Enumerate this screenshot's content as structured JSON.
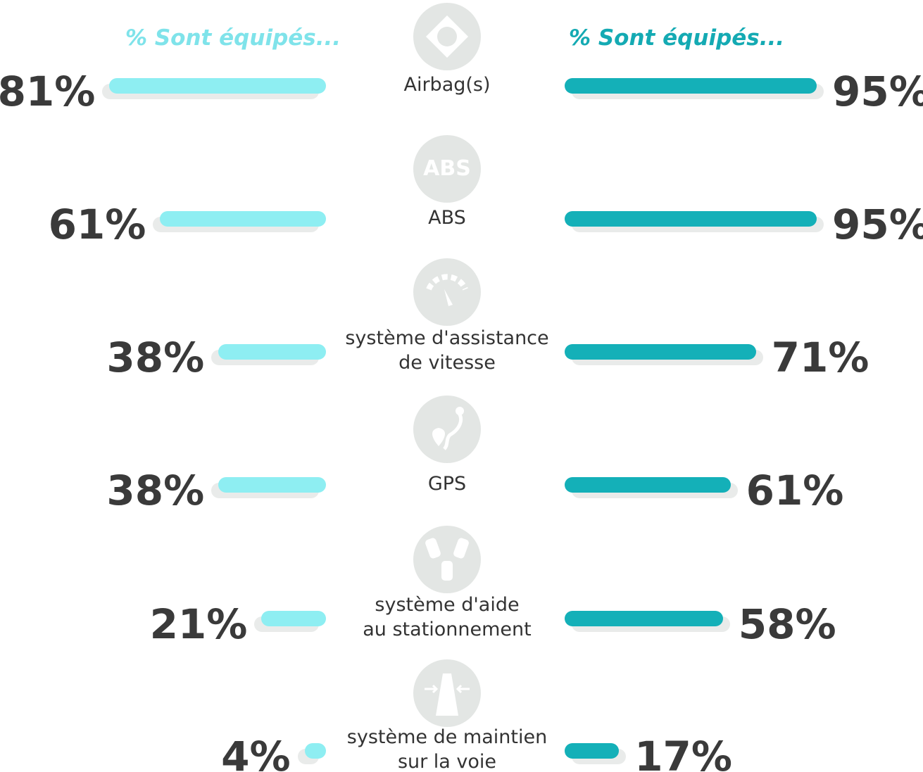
{
  "chart_data": {
    "type": "butterfly-bar",
    "categories": [
      "Airbag(s)",
      "ABS",
      "système d'assistance\nde vitesse",
      "GPS",
      "système d'aide\nau stationnement",
      "système de maintien\nsur la voie"
    ],
    "annotations": [
      "ABS"
    ],
    "series": [
      {
        "name": "% Sont équipés...",
        "color": "#8eeef2",
        "values": [
          81,
          61,
          38,
          38,
          21,
          4
        ],
        "value_labels": [
          "81%",
          "61%",
          "38%",
          "38%",
          "21%",
          "4%"
        ]
      },
      {
        "name": "% Sont équipés...",
        "color": "#14b0b8",
        "values": [
          95,
          95,
          71,
          61,
          58,
          17
        ],
        "value_labels": [
          "95%",
          "95%",
          "71%",
          "61%",
          "58%",
          "17%"
        ]
      }
    ]
  }
}
